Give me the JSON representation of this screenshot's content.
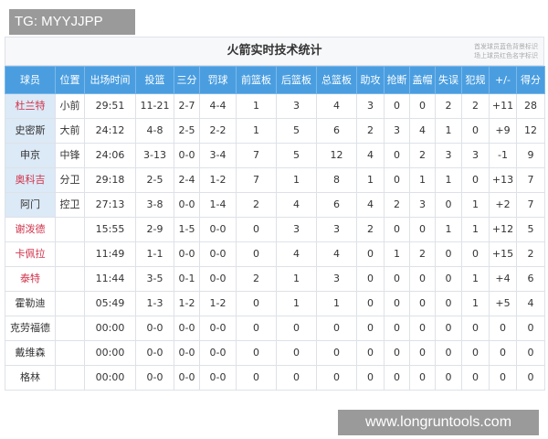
{
  "watermark": "TG: MYYJJPP",
  "site": "www.longruntools.com",
  "table": {
    "title": "火箭实时技术统计",
    "legend": [
      "首发球员蓝色背景标识",
      "场上球员红色名字标识"
    ],
    "colors": {
      "header": "#4a9ee0",
      "starter_bg": "#dce9f6",
      "on_court_name": "#d0334a"
    },
    "headers": [
      "球员",
      "位置",
      "出场时间",
      "投篮",
      "三分",
      "罚球",
      "前篮板",
      "后篮板",
      "总篮板",
      "助攻",
      "抢断",
      "盖帽",
      "失误",
      "犯规",
      "+/-",
      "得分"
    ],
    "rows": [
      {
        "starter": true,
        "on_court": true,
        "cells": [
          "杜兰特",
          "小前",
          "29:51",
          "11-21",
          "2-7",
          "4-4",
          "1",
          "3",
          "4",
          "3",
          "0",
          "0",
          "2",
          "2",
          "+11",
          "28"
        ]
      },
      {
        "starter": true,
        "on_court": false,
        "cells": [
          "史密斯",
          "大前",
          "24:12",
          "4-8",
          "2-5",
          "2-2",
          "1",
          "5",
          "6",
          "2",
          "3",
          "4",
          "1",
          "0",
          "+9",
          "12"
        ]
      },
      {
        "starter": true,
        "on_court": false,
        "cells": [
          "申京",
          "中锋",
          "24:06",
          "3-13",
          "0-0",
          "3-4",
          "7",
          "5",
          "12",
          "4",
          "0",
          "2",
          "3",
          "3",
          "-1",
          "9"
        ]
      },
      {
        "starter": true,
        "on_court": true,
        "cells": [
          "奥科吉",
          "分卫",
          "29:18",
          "2-5",
          "2-4",
          "1-2",
          "7",
          "1",
          "8",
          "1",
          "0",
          "1",
          "1",
          "0",
          "+13",
          "7"
        ]
      },
      {
        "starter": true,
        "on_court": false,
        "cells": [
          "阿门",
          "控卫",
          "27:13",
          "3-8",
          "0-0",
          "1-4",
          "2",
          "4",
          "6",
          "4",
          "2",
          "3",
          "0",
          "1",
          "+2",
          "7"
        ]
      },
      {
        "starter": false,
        "on_court": true,
        "cells": [
          "谢泼德",
          "",
          "15:55",
          "2-9",
          "1-5",
          "0-0",
          "0",
          "3",
          "3",
          "2",
          "0",
          "0",
          "1",
          "1",
          "+12",
          "5"
        ]
      },
      {
        "starter": false,
        "on_court": true,
        "cells": [
          "卡佩拉",
          "",
          "11:49",
          "1-1",
          "0-0",
          "0-0",
          "0",
          "4",
          "4",
          "0",
          "1",
          "2",
          "0",
          "0",
          "+15",
          "2"
        ]
      },
      {
        "starter": false,
        "on_court": true,
        "cells": [
          "泰特",
          "",
          "11:44",
          "3-5",
          "0-1",
          "0-0",
          "2",
          "1",
          "3",
          "0",
          "0",
          "0",
          "0",
          "1",
          "+4",
          "6"
        ]
      },
      {
        "starter": false,
        "on_court": false,
        "cells": [
          "霍勒迪",
          "",
          "05:49",
          "1-3",
          "1-2",
          "1-2",
          "0",
          "1",
          "1",
          "0",
          "0",
          "0",
          "0",
          "1",
          "+5",
          "4"
        ]
      },
      {
        "starter": false,
        "on_court": false,
        "cells": [
          "克劳福德",
          "",
          "00:00",
          "0-0",
          "0-0",
          "0-0",
          "0",
          "0",
          "0",
          "0",
          "0",
          "0",
          "0",
          "0",
          "0",
          "0"
        ]
      },
      {
        "starter": false,
        "on_court": false,
        "cells": [
          "戴维森",
          "",
          "00:00",
          "0-0",
          "0-0",
          "0-0",
          "0",
          "0",
          "0",
          "0",
          "0",
          "0",
          "0",
          "0",
          "0",
          "0"
        ]
      },
      {
        "starter": false,
        "on_court": false,
        "cells": [
          "格林",
          "",
          "00:00",
          "0-0",
          "0-0",
          "0-0",
          "0",
          "0",
          "0",
          "0",
          "0",
          "0",
          "0",
          "0",
          "0",
          "0"
        ]
      }
    ]
  }
}
